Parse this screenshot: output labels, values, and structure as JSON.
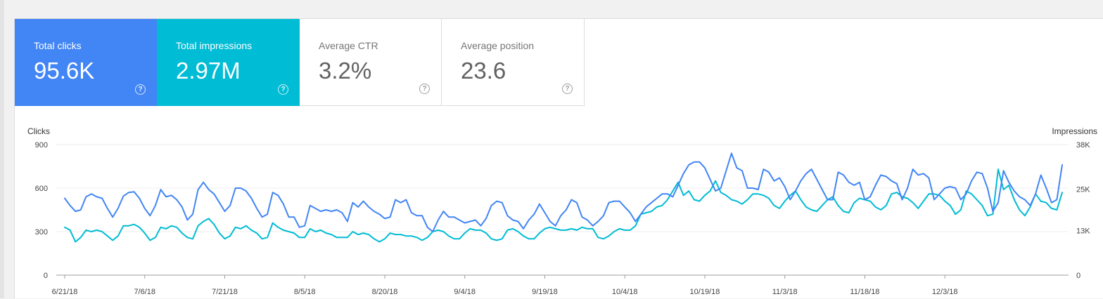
{
  "cards": [
    {
      "label": "Total clicks",
      "value": "95.6K"
    },
    {
      "label": "Total impressions",
      "value": "2.97M"
    },
    {
      "label": "Average CTR",
      "value": "3.2%"
    },
    {
      "label": "Average position",
      "value": "23.6"
    }
  ],
  "help_glyph": "?",
  "colors": {
    "clicks": "#4285f4",
    "impressions": "#00bcd4"
  },
  "chart_data": {
    "type": "line",
    "title": "",
    "left_axis_label": "Clicks",
    "right_axis_label": "Impressions",
    "x_start": "6/21/18",
    "x_tick_labels": [
      "6/21/18",
      "7/6/18",
      "7/21/18",
      "8/5/18",
      "8/20/18",
      "9/4/18",
      "9/19/18",
      "10/4/18",
      "10/19/18",
      "11/3/18",
      "11/18/18",
      "12/3/18"
    ],
    "left_ticks": [
      {
        "value": 0,
        "label": "0"
      },
      {
        "value": 300,
        "label": "300"
      },
      {
        "value": 600,
        "label": "600"
      },
      {
        "value": 900,
        "label": "900"
      }
    ],
    "right_ticks": [
      {
        "value": 0,
        "label": "0"
      },
      {
        "value": 13000,
        "label": "13K"
      },
      {
        "value": 25000,
        "label": "25K"
      },
      {
        "value": 38000,
        "label": "38K"
      }
    ],
    "left_range": [
      0,
      900
    ],
    "right_range": [
      0,
      38000
    ],
    "grid": true,
    "series": [
      {
        "name": "Clicks",
        "axis": "left",
        "values": [
          530,
          480,
          440,
          450,
          540,
          560,
          540,
          530,
          460,
          400,
          460,
          545,
          570,
          575,
          530,
          460,
          410,
          480,
          590,
          540,
          550,
          520,
          470,
          380,
          420,
          590,
          640,
          590,
          560,
          500,
          440,
          480,
          600,
          600,
          580,
          530,
          460,
          400,
          420,
          570,
          550,
          490,
          400,
          400,
          330,
          340,
          480,
          460,
          440,
          450,
          440,
          450,
          430,
          370,
          500,
          470,
          510,
          470,
          440,
          420,
          390,
          400,
          520,
          500,
          520,
          430,
          410,
          410,
          330,
          300,
          380,
          440,
          400,
          400,
          380,
          360,
          370,
          380,
          340,
          390,
          480,
          510,
          500,
          410,
          380,
          370,
          320,
          380,
          420,
          490,
          430,
          370,
          340,
          410,
          450,
          520,
          500,
          400,
          380,
          340,
          370,
          410,
          500,
          510,
          510,
          470,
          430,
          370,
          420,
          470,
          500,
          530,
          560,
          560,
          540,
          620,
          700,
          760,
          780,
          780,
          740,
          660,
          580,
          600,
          720,
          840,
          740,
          720,
          600,
          600,
          590,
          730,
          710,
          650,
          670,
          610,
          520,
          580,
          650,
          700,
          730,
          660,
          590,
          520,
          520,
          710,
          690,
          640,
          620,
          640,
          520,
          540,
          620,
          690,
          680,
          650,
          630,
          520,
          600,
          730,
          690,
          700,
          670,
          520,
          560,
          600,
          610,
          600,
          520,
          560,
          650,
          710,
          700,
          600,
          440,
          500,
          720,
          640,
          580,
          540,
          520,
          480,
          560,
          690,
          600,
          500,
          520,
          760
        ]
      },
      {
        "name": "Impressions",
        "axis": "left",
        "values": [
          330,
          310,
          230,
          260,
          310,
          300,
          310,
          300,
          270,
          240,
          270,
          340,
          340,
          350,
          330,
          290,
          240,
          260,
          330,
          320,
          340,
          330,
          290,
          260,
          250,
          340,
          370,
          390,
          350,
          290,
          250,
          270,
          330,
          320,
          340,
          310,
          290,
          250,
          260,
          360,
          330,
          310,
          300,
          290,
          260,
          260,
          320,
          300,
          310,
          290,
          280,
          260,
          260,
          260,
          300,
          280,
          290,
          280,
          250,
          230,
          250,
          290,
          280,
          280,
          270,
          270,
          260,
          240,
          260,
          300,
          310,
          300,
          270,
          250,
          250,
          290,
          320,
          310,
          310,
          290,
          250,
          240,
          250,
          310,
          320,
          300,
          270,
          250,
          250,
          290,
          320,
          330,
          320,
          310,
          310,
          320,
          310,
          330,
          320,
          320,
          260,
          250,
          270,
          300,
          320,
          310,
          310,
          340,
          420,
          430,
          440,
          470,
          480,
          520,
          580,
          640,
          550,
          580,
          520,
          510,
          550,
          580,
          650,
          570,
          550,
          520,
          510,
          490,
          520,
          560,
          560,
          550,
          530,
          480,
          460,
          510,
          550,
          580,
          520,
          470,
          450,
          440,
          480,
          520,
          540,
          480,
          440,
          430,
          500,
          530,
          520,
          510,
          470,
          450,
          480,
          560,
          570,
          540,
          530,
          500,
          460,
          510,
          560,
          560,
          550,
          510,
          480,
          420,
          450,
          580,
          560,
          520,
          480,
          410,
          420,
          730,
          590,
          620,
          520,
          450,
          410,
          470,
          560,
          510,
          500,
          460,
          450,
          570
        ]
      }
    ]
  }
}
